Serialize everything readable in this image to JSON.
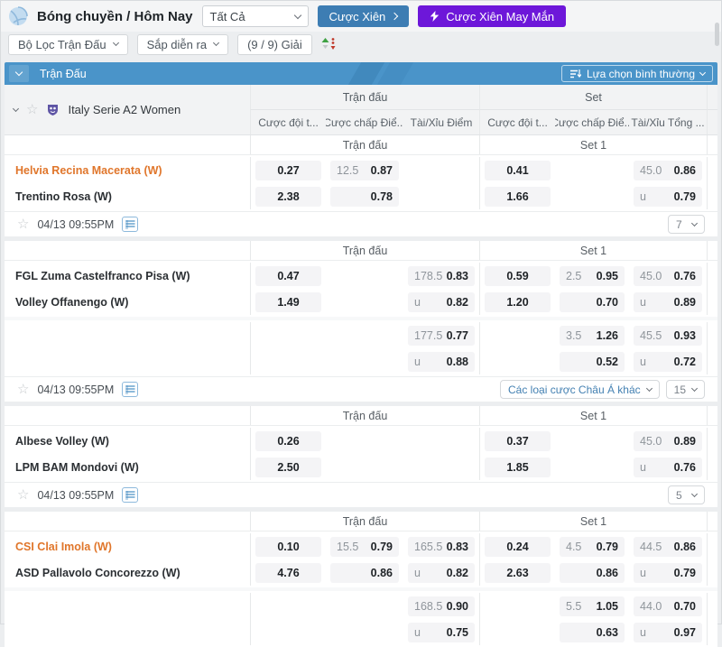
{
  "icons": {
    "star": "☆"
  },
  "topbar": {
    "sport_title": "Bóng chuyền / Hôm Nay",
    "filter_select_value": "Tất Cả",
    "parlay_button": "Cược Xiên",
    "lucky_parlay_button": "Cược Xiên May Mắn"
  },
  "filterbar": {
    "match_filter_label": "Bộ Lọc Trận Đấu",
    "upcoming_label": "Sắp diễn ra",
    "league_count_label": "(9 / 9) Giải"
  },
  "table_header": {
    "title": "Trận Đấu",
    "view_mode_label": "Lựa chọn bình thường"
  },
  "league": {
    "name": "Italy Serie A2 Women",
    "group_match": "Trận đấu",
    "group_set": "Set",
    "columns": [
      "Cược đội t...",
      "Cược chấp Điể...",
      "Tài/Xỉu Điểm",
      "Cược đội t...",
      "Cược chấp Điể...",
      "Tài/Xỉu Tổng ..."
    ]
  },
  "matches": [
    {
      "sub_match": "Trận đấu",
      "sub_set": "Set 1",
      "teams": [
        {
          "name": "Helvia Recina Macerata (W)",
          "highlight": true
        },
        {
          "name": "Trentino Rosa (W)",
          "highlight": false
        }
      ],
      "rows": [
        [
          {
            "v": "0.27"
          },
          {
            "h": "12.5",
            "v": "0.87"
          },
          null,
          {
            "v": "0.41"
          },
          null,
          {
            "h": "45.0",
            "v": "0.86"
          }
        ],
        [
          {
            "v": "2.38"
          },
          {
            "h": "",
            "v": "0.78"
          },
          null,
          {
            "v": "1.66"
          },
          null,
          {
            "h": "u",
            "v": "0.79"
          }
        ]
      ],
      "extra_rows": [],
      "footer": {
        "date": "04/13 09:55PM",
        "actions": [
          {
            "label": "7",
            "kind": "count"
          }
        ]
      }
    },
    {
      "sub_match": "Trận đấu",
      "sub_set": "Set 1",
      "teams": [
        {
          "name": "FGL Zuma Castelfranco Pisa (W)",
          "highlight": false
        },
        {
          "name": "Volley Offanengo (W)",
          "highlight": false
        }
      ],
      "rows": [
        [
          {
            "v": "0.47"
          },
          null,
          {
            "h": "178.5",
            "v": "0.83"
          },
          {
            "v": "0.59"
          },
          {
            "h": "2.5",
            "v": "0.95"
          },
          {
            "h": "45.0",
            "v": "0.76"
          }
        ],
        [
          {
            "v": "1.49"
          },
          null,
          {
            "h": "u",
            "v": "0.82"
          },
          {
            "v": "1.20"
          },
          {
            "h": "",
            "v": "0.70"
          },
          {
            "h": "u",
            "v": "0.89"
          }
        ]
      ],
      "extra_rows": [
        [
          null,
          null,
          {
            "h": "177.5",
            "v": "0.77"
          },
          null,
          {
            "h": "3.5",
            "v": "1.26"
          },
          {
            "h": "45.5",
            "v": "0.93"
          }
        ],
        [
          null,
          null,
          {
            "h": "u",
            "v": "0.88"
          },
          null,
          {
            "h": "",
            "v": "0.52"
          },
          {
            "h": "u",
            "v": "0.72"
          }
        ]
      ],
      "footer": {
        "date": "04/13 09:55PM",
        "actions": [
          {
            "label": "Các loại cược Châu Á khác",
            "kind": "link"
          },
          {
            "label": "15",
            "kind": "count"
          }
        ]
      }
    },
    {
      "sub_match": "Trận đấu",
      "sub_set": "Set 1",
      "teams": [
        {
          "name": "Albese Volley (W)",
          "highlight": false
        },
        {
          "name": "LPM BAM Mondovi (W)",
          "highlight": false
        }
      ],
      "rows": [
        [
          {
            "v": "0.26"
          },
          null,
          null,
          {
            "v": "0.37"
          },
          null,
          {
            "h": "45.0",
            "v": "0.89"
          }
        ],
        [
          {
            "v": "2.50"
          },
          null,
          null,
          {
            "v": "1.85"
          },
          null,
          {
            "h": "u",
            "v": "0.76"
          }
        ]
      ],
      "extra_rows": [],
      "footer": {
        "date": "04/13 09:55PM",
        "actions": [
          {
            "label": "5",
            "kind": "count"
          }
        ]
      }
    },
    {
      "sub_match": "Trận đấu",
      "sub_set": "Set 1",
      "teams": [
        {
          "name": "CSI Clai Imola (W)",
          "highlight": true
        },
        {
          "name": "ASD Pallavolo Concorezzo (W)",
          "highlight": false
        }
      ],
      "rows": [
        [
          {
            "v": "0.10"
          },
          {
            "h": "15.5",
            "v": "0.79"
          },
          {
            "h": "165.5",
            "v": "0.83"
          },
          {
            "v": "0.24"
          },
          {
            "h": "4.5",
            "v": "0.79"
          },
          {
            "h": "44.5",
            "v": "0.86"
          }
        ],
        [
          {
            "v": "4.76"
          },
          {
            "h": "",
            "v": "0.86"
          },
          {
            "h": "u",
            "v": "0.82"
          },
          {
            "v": "2.63"
          },
          {
            "h": "",
            "v": "0.86"
          },
          {
            "h": "u",
            "v": "0.79"
          }
        ]
      ],
      "extra_rows": [
        [
          null,
          null,
          {
            "h": "168.5",
            "v": "0.90"
          },
          null,
          {
            "h": "5.5",
            "v": "1.05"
          },
          {
            "h": "44.0",
            "v": "0.70"
          }
        ],
        [
          null,
          null,
          {
            "h": "u",
            "v": "0.75"
          },
          null,
          {
            "h": "",
            "v": "0.63"
          },
          {
            "h": "u",
            "v": "0.97"
          }
        ]
      ],
      "footer": null
    }
  ]
}
